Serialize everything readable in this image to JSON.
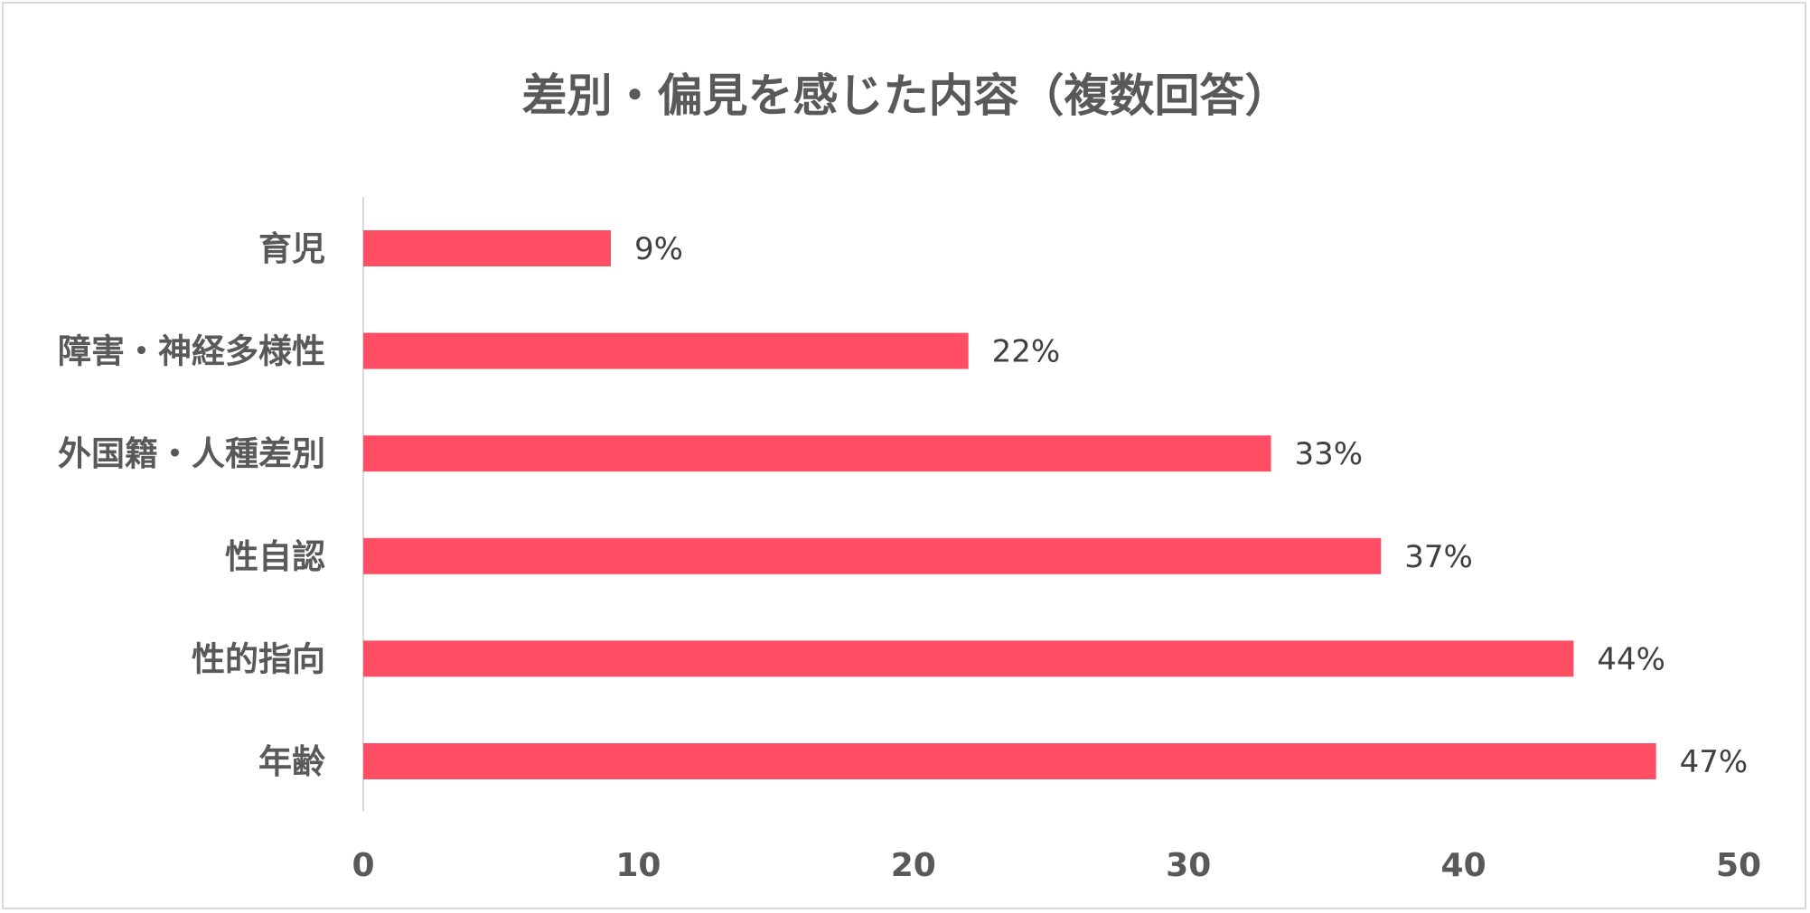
{
  "chart_data": {
    "type": "bar",
    "orientation": "horizontal",
    "title": "差別・偏見を感じた内容（複数回答）",
    "categories": [
      "育児",
      "障害・神経多様性",
      "外国籍・人種差別",
      "性自認",
      "性的指向",
      "年齢"
    ],
    "values": [
      9,
      22,
      33,
      37,
      44,
      47
    ],
    "data_labels": [
      "9%",
      "22%",
      "33%",
      "37%",
      "44%",
      "47%"
    ],
    "xlim": [
      0,
      50
    ],
    "x_ticks": [
      "0",
      "10",
      "20",
      "30",
      "40",
      "50"
    ],
    "bar_color": "#ff4d63",
    "grid": false,
    "legend": "none"
  }
}
